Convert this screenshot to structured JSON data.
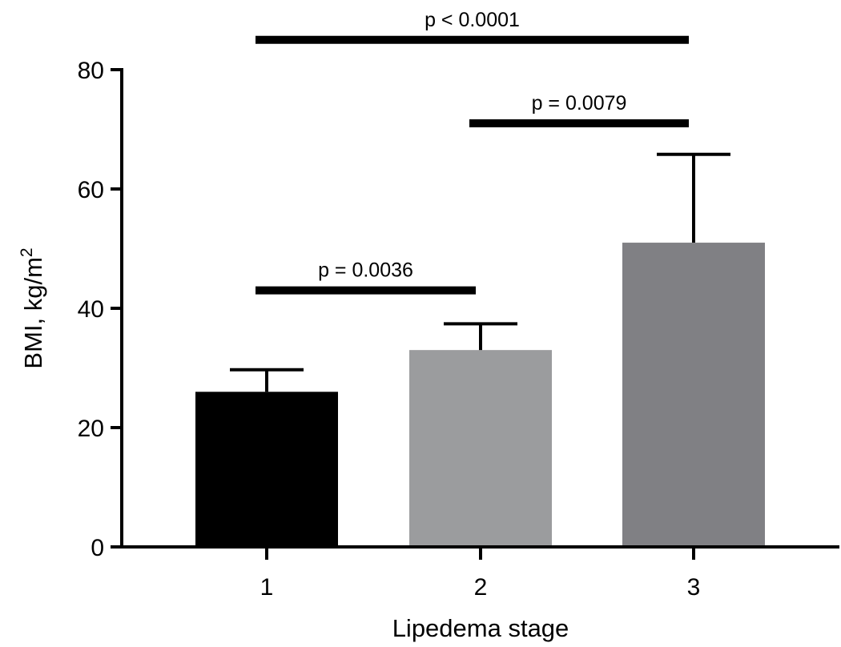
{
  "chart_data": {
    "type": "bar",
    "title": "",
    "xlabel": "Lipedema stage",
    "ylabel": "BMI, kg/m",
    "ylabel_superscript": "2",
    "ylim": [
      0,
      80
    ],
    "yticks": [
      0,
      20,
      40,
      60,
      80
    ],
    "ytick_labels": [
      "0",
      "20",
      "40",
      "60",
      "80"
    ],
    "grid": false,
    "legend": "none",
    "categories": [
      "1",
      "2",
      "3"
    ],
    "series": [
      {
        "values": [
          26,
          33,
          51
        ],
        "error_upper": [
          29.7,
          37.4,
          65.8
        ],
        "colors": [
          "#000000",
          "#9b9c9e",
          "#808084"
        ]
      }
    ],
    "annotations": [
      {
        "from": "1",
        "to": "2",
        "value": 43,
        "label": "p = 0.0036"
      },
      {
        "from": "2",
        "to": "3",
        "value": 71,
        "label": "p = 0.0079"
      },
      {
        "from": "1",
        "to": "3",
        "value": 85,
        "label": "p < 0.0001"
      }
    ]
  }
}
